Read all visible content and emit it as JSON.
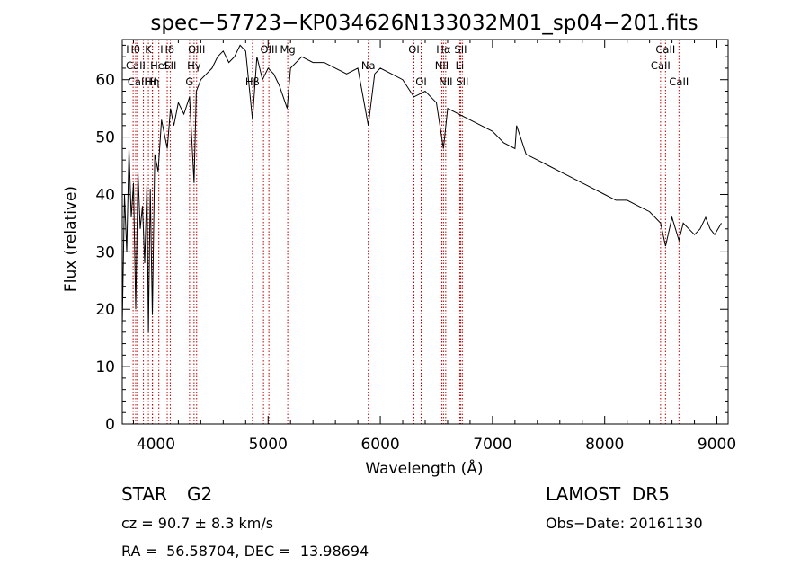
{
  "chart_data": {
    "type": "line",
    "title": "spec−57723−KP034626N133032M01_sp04−201.fits",
    "xlabel": "Wavelength (Å)",
    "ylabel": "Flux (relative)",
    "xlim": [
      3700,
      9100
    ],
    "ylim": [
      0,
      67
    ],
    "xticks": [
      4000,
      5000,
      6000,
      7000,
      8000,
      9000
    ],
    "yticks": [
      0,
      10,
      20,
      30,
      40,
      50,
      60
    ],
    "grid": false,
    "line_color": "#000000",
    "marker_color": "#c00000",
    "series": [
      {
        "x": [
          3700,
          3720,
          3740,
          3760,
          3780,
          3800,
          3820,
          3840,
          3860,
          3880,
          3900,
          3920,
          3933,
          3950,
          3968,
          3990,
          4020,
          4050,
          4101,
          4130,
          4160,
          4200,
          4250,
          4300,
          4340,
          4360,
          4400,
          4450,
          4500,
          4550,
          4600,
          4650,
          4700,
          4750,
          4800,
          4861,
          4900,
          4950,
          5000,
          5050,
          5100,
          5170,
          5200,
          5300,
          5400,
          5500,
          5600,
          5700,
          5800,
          5893,
          5950,
          6000,
          6100,
          6200,
          6300,
          6400,
          6500,
          6563,
          6600,
          6700,
          6800,
          6900,
          7000,
          7100,
          7200,
          7215,
          7300,
          7400,
          7500,
          7600,
          7700,
          7800,
          7900,
          8000,
          8100,
          8200,
          8300,
          8400,
          8498,
          8542,
          8600,
          8662,
          8700,
          8750,
          8800,
          8850,
          8900,
          8940,
          8980,
          9010,
          9040
        ],
        "y": [
          17,
          40,
          30,
          48,
          36,
          42,
          20,
          44,
          34,
          38,
          28,
          42,
          16,
          41,
          19,
          47,
          44,
          53,
          48,
          55,
          52,
          56,
          54,
          57,
          42,
          58,
          60,
          61,
          62,
          64,
          65,
          63,
          64,
          66,
          65,
          53,
          64,
          60,
          62,
          61,
          59,
          55,
          62,
          64,
          63,
          63,
          62,
          61,
          62,
          52,
          61,
          62,
          61,
          60,
          57,
          58,
          56,
          48,
          55,
          54,
          53,
          52,
          51,
          49,
          48,
          52,
          47,
          46,
          45,
          44,
          43,
          42,
          41,
          40,
          39,
          39,
          38,
          37,
          35,
          31,
          36,
          32,
          35,
          34,
          33,
          34,
          36,
          34,
          33,
          34,
          35
        ]
      }
    ],
    "lines": [
      {
        "w": 3797,
        "label": "Hθ",
        "row": 0
      },
      {
        "w": 3820,
        "label": "CaII",
        "row": 1
      },
      {
        "w": 3835,
        "label": "CaII",
        "row": 2
      },
      {
        "w": 3889,
        "label": "",
        "row": 0
      },
      {
        "w": 3933,
        "label": "K",
        "row": 0
      },
      {
        "w": 3968,
        "label": "Hη",
        "row": 2
      },
      {
        "w": 3970,
        "label": "H",
        "row": 2
      },
      {
        "w": 4026,
        "label": "HeI",
        "row": 1
      },
      {
        "w": 4101,
        "label": "Hδ",
        "row": 0
      },
      {
        "w": 4128,
        "label": "SII",
        "row": 1
      },
      {
        "w": 4300,
        "label": "G",
        "row": 2
      },
      {
        "w": 4340,
        "label": "Hγ",
        "row": 1
      },
      {
        "w": 4363,
        "label": "OIII",
        "row": 0
      },
      {
        "w": 4861,
        "label": "Hβ",
        "row": 2
      },
      {
        "w": 4959,
        "label": "",
        "row": 0
      },
      {
        "w": 5007,
        "label": "OIII",
        "row": 0
      },
      {
        "w": 5175,
        "label": "Mg",
        "row": 0
      },
      {
        "w": 5893,
        "label": "Na",
        "row": 1
      },
      {
        "w": 6300,
        "label": "OI",
        "row": 0
      },
      {
        "w": 6364,
        "label": "OI",
        "row": 2
      },
      {
        "w": 6548,
        "label": "NII",
        "row": 1
      },
      {
        "w": 6563,
        "label": "Hα",
        "row": 0
      },
      {
        "w": 6583,
        "label": "NII",
        "row": 2
      },
      {
        "w": 6708,
        "label": "Li",
        "row": 1
      },
      {
        "w": 6716,
        "label": "SII",
        "row": 0
      },
      {
        "w": 6731,
        "label": "SII",
        "row": 2
      },
      {
        "w": 8498,
        "label": "CaII",
        "row": 1
      },
      {
        "w": 8542,
        "label": "CaII",
        "row": 0
      },
      {
        "w": 8662,
        "label": "CaII",
        "row": 2
      }
    ]
  },
  "info": {
    "class": "STAR",
    "subclass": "G2",
    "survey": "LAMOST  DR5",
    "cz": "cz = 90.7 ± 8.3 km/s",
    "obs_date": "Obs−Date: 20161130",
    "radec": "RA =  56.58704, DEC =  13.98694"
  }
}
